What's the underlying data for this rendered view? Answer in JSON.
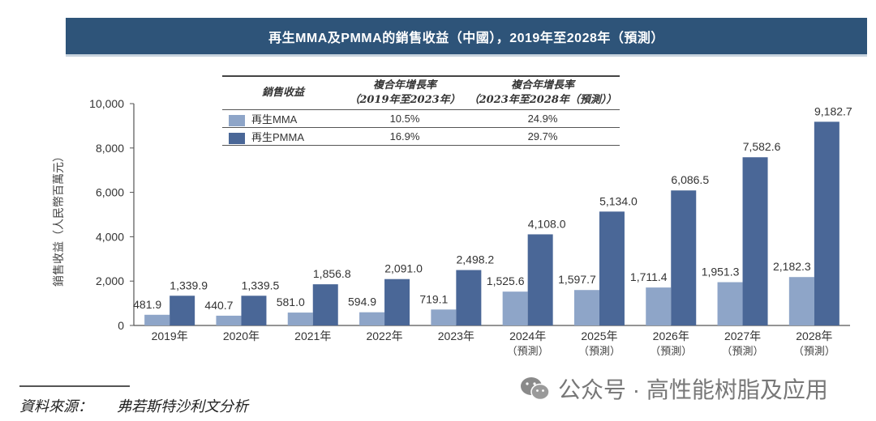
{
  "title": "再生MMA及PMMA的銷售收益（中國），2019年至2028年（預測）",
  "colors": {
    "title_bg": "#2e5479",
    "mma": "#8ea5c8",
    "pmma": "#4a6797",
    "axis": "#555555"
  },
  "cagr_table": {
    "headers": [
      "銷售收益",
      "複合年增長率\n（2019年至2023年）",
      "複合年增長率\n（2023年至2028年（預測））"
    ],
    "header_col1": "銷售收益",
    "header_col2_line1": "複合年增長率",
    "header_col2_line2": "（2019年至2023年）",
    "header_col3_line1": "複合年增長率",
    "header_col3_line2": "（2023年至2028年（預測））",
    "rows": [
      {
        "name": "再生MMA",
        "cagr_2019_2023": "10.5%",
        "cagr_2023_2028": "24.9%"
      },
      {
        "name": "再生PMMA",
        "cagr_2019_2023": "16.9%",
        "cagr_2023_2028": "29.7%"
      }
    ]
  },
  "chart_data": {
    "type": "bar",
    "title": "再生MMA及PMMA的銷售收益（中國），2019年至2028年（預測）",
    "xlabel": "",
    "ylabel": "銷售收益（人民幣百萬元）",
    "ylim": [
      0,
      10000
    ],
    "yticks": [
      0,
      2000,
      4000,
      6000,
      8000,
      10000
    ],
    "ytick_labels": [
      "0",
      "2,000",
      "4,000",
      "6,000",
      "8,000",
      "10,000"
    ],
    "grid": false,
    "categories": [
      "2019年",
      "2020年",
      "2021年",
      "2022年",
      "2023年",
      "2024年",
      "2025年",
      "2026年",
      "2027年",
      "2028年"
    ],
    "category_sublabels": [
      "",
      "",
      "",
      "",
      "",
      "（預測）",
      "（預測）",
      "（預測）",
      "（預測）",
      "（預測）"
    ],
    "series": [
      {
        "name": "再生MMA",
        "color": "#8ea5c8",
        "values": [
          481.9,
          440.7,
          581.0,
          594.9,
          719.1,
          1525.6,
          1597.7,
          1711.4,
          1951.3,
          2182.3
        ],
        "labels": [
          "481.9",
          "440.7",
          "581.0",
          "594.9",
          "719.1",
          "1,525.6",
          "1,597.7",
          "1,711.4",
          "1,951.3",
          "2,182.3"
        ]
      },
      {
        "name": "再生PMMA",
        "color": "#4a6797",
        "values": [
          1339.9,
          1339.5,
          1856.8,
          2091.0,
          2498.2,
          4108.0,
          5134.0,
          6086.5,
          7582.6,
          9182.7
        ],
        "labels": [
          "1,339.9",
          "1,339.5",
          "1,856.8",
          "2,091.0",
          "2,498.2",
          "4,108.0",
          "5,134.0",
          "6,086.5",
          "7,582.6",
          "9,182.7"
        ]
      }
    ],
    "legend": "embedded-table-top-center"
  },
  "source": {
    "label": "資料來源：",
    "text": "弗若斯特沙利文分析"
  },
  "watermark": {
    "icon": "wechat-icon",
    "text": "公众号 · 高性能树脂及应用"
  }
}
